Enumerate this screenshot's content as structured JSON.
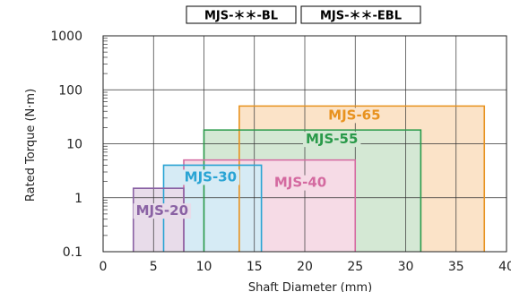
{
  "chart_data": {
    "type": "bar",
    "subtype": "range-rectangles",
    "header_labels": [
      "MJS-＊＊-BL",
      "MJS-＊＊-EBL"
    ],
    "xlabel": "Shaft Diameter (mm)",
    "ylabel": "Rated Torque (N·m)",
    "xlim": [
      0,
      40
    ],
    "ylim": [
      0.1,
      1000
    ],
    "yscale": "log",
    "x_ticks": [
      "0",
      "5",
      "10",
      "15",
      "20",
      "25",
      "30",
      "35",
      "40"
    ],
    "y_ticks": [
      "1000",
      "100",
      "10",
      "1",
      "0.1"
    ],
    "grid": true,
    "series": [
      {
        "name": "MJS-65",
        "x_min": 13.5,
        "x_max": 37.8,
        "torque": 50,
        "color": "#e8921e",
        "fill": "#fbe3c8"
      },
      {
        "name": "MJS-55",
        "x_min": 10,
        "x_max": 31.5,
        "torque": 18,
        "color": "#2a9a4a",
        "fill": "#d4e8d4"
      },
      {
        "name": "MJS-40",
        "x_min": 8,
        "x_max": 25,
        "torque": 5,
        "color": "#d46aa0",
        "fill": "#f6dbe6"
      },
      {
        "name": "MJS-30",
        "x_min": 6,
        "x_max": 15.7,
        "torque": 4,
        "color": "#2aa4d4",
        "fill": "#d6ebf5"
      },
      {
        "name": "MJS-20",
        "x_min": 3,
        "x_max": 8,
        "torque": 1.5,
        "color": "#8a62a4",
        "fill": "#e8dcea"
      }
    ]
  }
}
